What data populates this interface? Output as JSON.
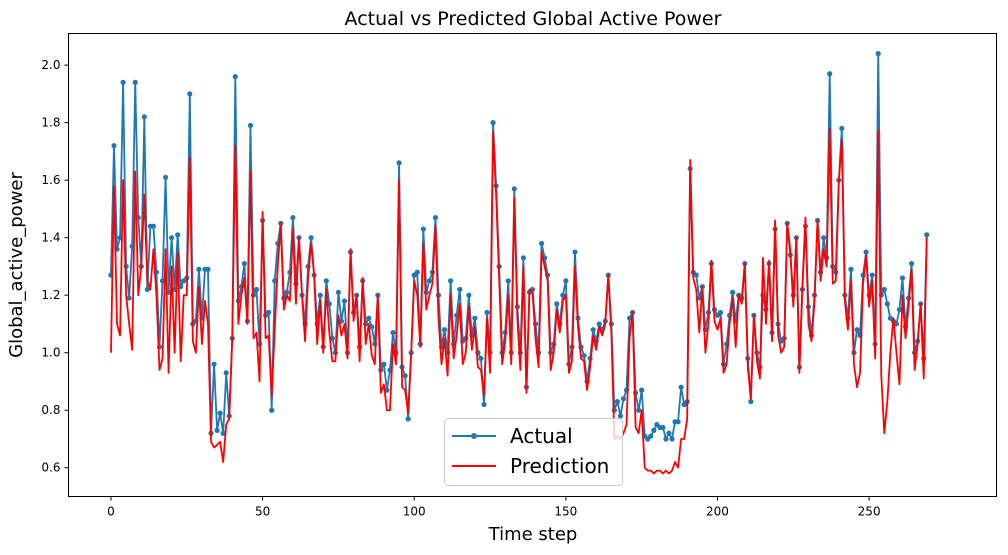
{
  "chart_data": {
    "type": "line",
    "title": "Actual vs Predicted Global Active Power",
    "xlabel": "Time step",
    "ylabel": "Global_active_power",
    "xlim": [
      -14,
      292
    ],
    "ylim": [
      0.5,
      2.11
    ],
    "xticks": [
      0,
      50,
      100,
      150,
      200,
      250
    ],
    "yticks": [
      0.6,
      0.8,
      1.0,
      1.2,
      1.4,
      1.6,
      1.8,
      2.0
    ],
    "ytick_labels": [
      "0.6",
      "0.8",
      "1.0",
      "1.2",
      "1.4",
      "1.6",
      "1.8",
      "2.0"
    ],
    "grid": false,
    "legend_position": "lower-center",
    "series": [
      {
        "name": "Actual",
        "color": "#1f77b4",
        "marker": "circle",
        "x_start": 0,
        "x_step": 1,
        "values": [
          1.27,
          1.72,
          1.36,
          1.4,
          1.94,
          1.3,
          1.19,
          1.37,
          1.94,
          1.47,
          1.3,
          1.82,
          1.22,
          1.44,
          1.44,
          1.28,
          1.02,
          1.25,
          1.61,
          1.21,
          1.4,
          1.22,
          1.41,
          1.23,
          1.25,
          1.26,
          1.9,
          1.1,
          1.11,
          1.29,
          1.12,
          1.29,
          1.29,
          0.72,
          0.96,
          0.73,
          0.79,
          0.72,
          0.93,
          0.78,
          1.05,
          1.96,
          1.18,
          1.23,
          1.31,
          1.11,
          1.79,
          1.2,
          1.22,
          1.03,
          1.46,
          1.13,
          1.14,
          0.8,
          1.25,
          1.38,
          1.45,
          1.19,
          1.21,
          1.28,
          1.47,
          1.24,
          1.4,
          1.2,
          1.1,
          1.3,
          1.4,
          1.27,
          1.1,
          1.2,
          1.02,
          1.25,
          1.17,
          1.05,
          1.0,
          1.21,
          1.11,
          1.18,
          1.0,
          1.35,
          1.14,
          1.2,
          1.02,
          1.25,
          1.1,
          1.12,
          1.09,
          1.03,
          1.2,
          0.94,
          0.96,
          0.87,
          0.94,
          1.07,
          1.0,
          1.66,
          0.95,
          0.92,
          0.77,
          1.0,
          1.27,
          1.28,
          1.03,
          1.43,
          1.21,
          1.25,
          1.28,
          1.47,
          1.2,
          1.02,
          1.08,
          1.0,
          1.25,
          1.03,
          1.13,
          1.22,
          1.04,
          1.05,
          1.2,
          1.06,
          1.12,
          1.0,
          0.98,
          0.82,
          1.14,
          1.0,
          1.8,
          1.58,
          1.3,
          1.0,
          1.07,
          1.25,
          1.0,
          1.57,
          1.16,
          1.0,
          1.33,
          0.88,
          1.21,
          1.22,
          1.1,
          1.0,
          1.38,
          1.33,
          1.27,
          1.0,
          1.03,
          1.17,
          1.1,
          1.2,
          1.25,
          0.96,
          1.02,
          1.35,
          1.12,
          1.02,
          0.99,
          0.9,
          0.98,
          1.08,
          1.04,
          1.1,
          1.08,
          1.11,
          1.27,
          1.1,
          0.8,
          0.83,
          0.78,
          0.84,
          0.87,
          1.12,
          1.14,
          0.86,
          0.8,
          0.87,
          0.71,
          0.7,
          0.71,
          0.73,
          0.75,
          0.74,
          0.74,
          0.7,
          0.72,
          0.7,
          0.76,
          0.76,
          0.88,
          0.82,
          0.83,
          1.64,
          1.28,
          1.27,
          1.19,
          1.23,
          1.08,
          1.14,
          1.31,
          1.15,
          1.13,
          1.14,
          0.96,
          1.03,
          1.13,
          1.21,
          1.11,
          1.2,
          1.19,
          1.31,
          0.98,
          0.83,
          1.13,
          1.0,
          0.95,
          1.2,
          1.15,
          1.31,
          1.07,
          1.43,
          1.1,
          1.04,
          1.05,
          1.45,
          1.34,
          1.2,
          1.4,
          0.95,
          1.22,
          1.44,
          1.16,
          1.06,
          1.2,
          1.46,
          1.28,
          1.4,
          1.33,
          1.97,
          1.3,
          1.28,
          1.6,
          1.78,
          1.2,
          1.12,
          1.29,
          1.0,
          1.08,
          1.06,
          1.27,
          1.35,
          1.2,
          1.27,
          1.03,
          2.04,
          1.2,
          1.22,
          1.17,
          1.12,
          1.11,
          1.1,
          1.15,
          1.26,
          1.09,
          1.19,
          1.31,
          1.0,
          1.04,
          1.17,
          0.98,
          1.41
        ]
      },
      {
        "name": "Prediction",
        "color": "#ff0000",
        "marker": "none",
        "x_start": 0,
        "x_step": 1,
        "values": [
          1.0,
          1.58,
          1.1,
          1.06,
          1.6,
          1.2,
          1.1,
          1.01,
          1.63,
          1.2,
          1.3,
          1.55,
          1.25,
          1.22,
          1.36,
          1.2,
          0.94,
          0.98,
          1.36,
          0.93,
          1.3,
          1.0,
          1.35,
          0.97,
          1.2,
          1.2,
          1.68,
          1.04,
          1.0,
          1.23,
          1.03,
          1.18,
          1.1,
          0.69,
          0.67,
          0.68,
          0.69,
          0.62,
          0.75,
          0.77,
          1.05,
          1.72,
          1.1,
          1.2,
          1.26,
          1.1,
          1.63,
          1.05,
          1.07,
          0.9,
          1.49,
          1.05,
          1.06,
          0.85,
          1.08,
          1.3,
          1.45,
          1.15,
          1.2,
          1.18,
          1.43,
          1.17,
          1.4,
          1.2,
          1.04,
          1.26,
          1.38,
          1.27,
          1.03,
          1.18,
          1.0,
          1.22,
          1.07,
          0.97,
          0.97,
          1.13,
          1.06,
          1.1,
          0.98,
          1.36,
          1.11,
          1.2,
          0.97,
          1.26,
          1.03,
          1.1,
          0.99,
          0.96,
          1.2,
          0.86,
          0.89,
          0.8,
          0.8,
          1.03,
          0.96,
          1.6,
          0.88,
          0.87,
          0.79,
          1.0,
          1.25,
          1.2,
          1.02,
          1.38,
          1.15,
          1.2,
          1.24,
          1.44,
          1.12,
          0.96,
          1.05,
          0.92,
          1.2,
          0.98,
          1.06,
          1.17,
          0.96,
          1.0,
          1.16,
          1.01,
          1.09,
          0.95,
          0.94,
          0.85,
          1.12,
          0.93,
          1.77,
          1.55,
          1.26,
          0.96,
          1.04,
          1.2,
          0.96,
          1.54,
          1.12,
          0.94,
          1.3,
          0.86,
          1.22,
          1.21,
          1.05,
          0.95,
          1.35,
          1.3,
          1.25,
          0.94,
          1.0,
          1.15,
          1.07,
          1.18,
          1.2,
          0.93,
          0.97,
          1.3,
          1.09,
          0.98,
          0.97,
          0.87,
          0.95,
          1.06,
          1.01,
          1.09,
          1.06,
          1.1,
          1.27,
          1.07,
          0.7,
          0.71,
          0.7,
          0.72,
          0.75,
          1.05,
          1.14,
          0.74,
          0.72,
          0.8,
          0.6,
          0.59,
          0.59,
          0.58,
          0.59,
          0.59,
          0.58,
          0.59,
          0.58,
          0.59,
          0.62,
          0.6,
          0.7,
          0.7,
          0.77,
          1.67,
          1.26,
          1.22,
          1.07,
          1.23,
          1.0,
          1.1,
          1.32,
          1.11,
          1.08,
          1.12,
          0.93,
          0.96,
          1.1,
          1.19,
          1.02,
          1.2,
          1.17,
          1.31,
          0.95,
          0.84,
          1.13,
          0.97,
          0.91,
          1.33,
          1.1,
          1.32,
          1.04,
          1.46,
          1.06,
          1.0,
          1.02,
          1.45,
          1.36,
          1.16,
          1.4,
          0.93,
          1.23,
          1.47,
          1.1,
          1.04,
          1.18,
          1.46,
          1.25,
          1.36,
          1.3,
          1.78,
          1.24,
          1.25,
          1.59,
          1.74,
          1.18,
          1.08,
          1.25,
          0.96,
          0.88,
          0.93,
          1.24,
          1.34,
          1.16,
          1.25,
          0.98,
          1.77,
          0.92,
          0.72,
          0.83,
          1.0,
          1.12,
          1.0,
          0.89,
          1.2,
          1.05,
          1.16,
          1.29,
          0.94,
          1.03,
          1.17,
          0.91,
          1.4
        ]
      }
    ]
  }
}
